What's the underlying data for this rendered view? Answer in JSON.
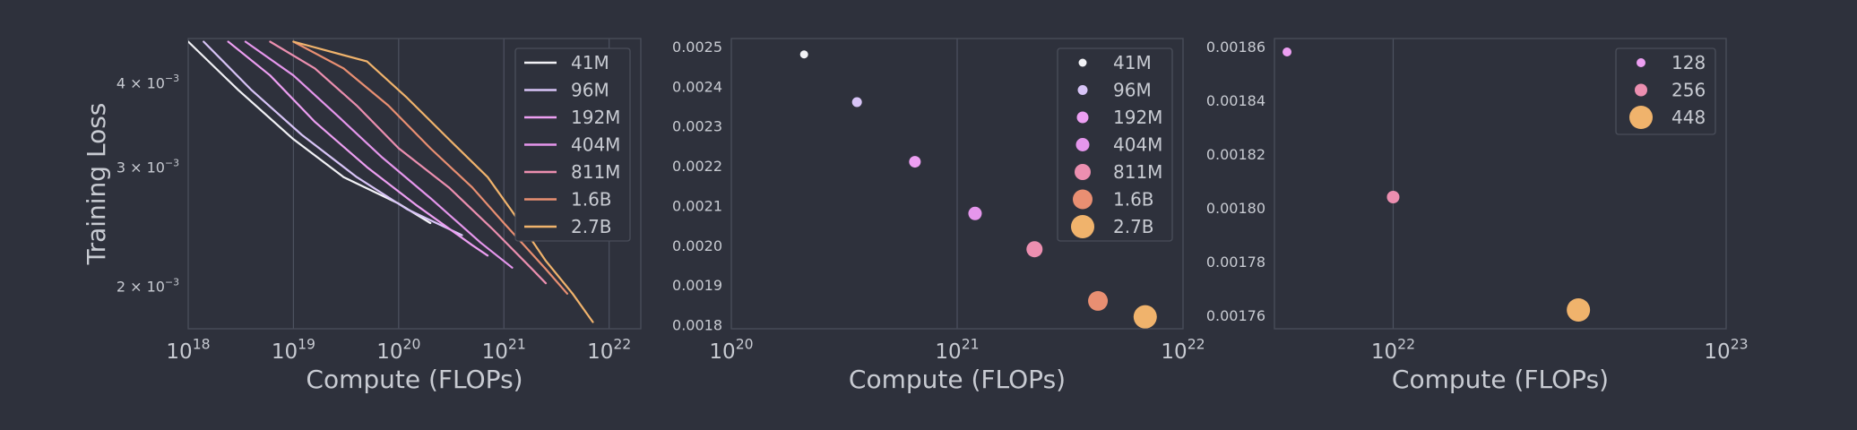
{
  "colors": {
    "background": "#2e313c",
    "text": "#c8cbd2",
    "frame": "#4a4e5a",
    "grid": "#4d5260",
    "legend_bg": "#2e313c",
    "series": [
      "#f2f2f6",
      "#d8c4f7",
      "#ed9ff2",
      "#e596ec",
      "#ec8fb0",
      "#e98f72",
      "#f0b36c"
    ]
  },
  "chart_data": [
    {
      "type": "line",
      "ylabel": "Training Loss",
      "xlabel": "Compute (FLOPs)",
      "xscale": "log",
      "yscale": "log",
      "xlim": [
        1e+18,
        2e+22
      ],
      "ylim": [
        0.00173,
        0.00465
      ],
      "grid": "vertical",
      "legend_position": "top-right",
      "x_ticks": [
        {
          "v": 1e+18,
          "base": "10",
          "exp": "18"
        },
        {
          "v": 1e+19,
          "base": "10",
          "exp": "19"
        },
        {
          "v": 1e+20,
          "base": "10",
          "exp": "20"
        },
        {
          "v": 1e+21,
          "base": "10",
          "exp": "21"
        },
        {
          "v": 1e+22,
          "base": "10",
          "exp": "22"
        }
      ],
      "y_ticks": [
        {
          "v": 0.004,
          "base": "4 × 10",
          "exp": "−3"
        },
        {
          "v": 0.003,
          "base": "3 × 10",
          "exp": "−3"
        },
        {
          "v": 0.002,
          "base": "2 × 10",
          "exp": "−3"
        }
      ],
      "series": [
        {
          "name": "41M",
          "points": [
            [
              1e+18,
              0.0046
            ],
            [
              3e+18,
              0.0039
            ],
            [
              1e+19,
              0.0033
            ],
            [
              3e+19,
              0.0029
            ],
            [
              1e+20,
              0.00265
            ],
            [
              2e+20,
              0.00248
            ]
          ]
        },
        {
          "name": "96M",
          "points": [
            [
              1.4e+18,
              0.0046
            ],
            [
              4e+18,
              0.0039
            ],
            [
              1.2e+19,
              0.00335
            ],
            [
              4e+19,
              0.0029
            ],
            [
              1.2e+20,
              0.0026
            ],
            [
              4e+20,
              0.00238
            ]
          ]
        },
        {
          "name": "192M",
          "points": [
            [
              2.4e+18,
              0.0046
            ],
            [
              6e+18,
              0.0041
            ],
            [
              1.6e+19,
              0.0035
            ],
            [
              5e+19,
              0.003
            ],
            [
              1.5e+20,
              0.00263
            ],
            [
              5e+20,
              0.0023
            ],
            [
              7e+20,
              0.00222
            ]
          ]
        },
        {
          "name": "404M",
          "points": [
            [
              3.5e+18,
              0.0046
            ],
            [
              1e+19,
              0.0041
            ],
            [
              2.5e+19,
              0.0036
            ],
            [
              7e+19,
              0.0031
            ],
            [
              2e+20,
              0.0027
            ],
            [
              6e+20,
              0.00232
            ],
            [
              1.2e+21,
              0.00213
            ]
          ]
        },
        {
          "name": "811M",
          "points": [
            [
              6e+18,
              0.0046
            ],
            [
              1.6e+19,
              0.0042
            ],
            [
              4e+19,
              0.0037
            ],
            [
              1e+20,
              0.0032
            ],
            [
              3e+20,
              0.0028
            ],
            [
              8e+20,
              0.00242
            ],
            [
              1.8e+21,
              0.00213
            ],
            [
              2.5e+21,
              0.00202
            ]
          ]
        },
        {
          "name": "1.6B",
          "points": [
            [
              1e+19,
              0.0046
            ],
            [
              3e+19,
              0.0042
            ],
            [
              8e+19,
              0.0037
            ],
            [
              2e+20,
              0.0032
            ],
            [
              5e+20,
              0.0028
            ],
            [
              1e+21,
              0.00248
            ],
            [
              2.5e+21,
              0.00212
            ],
            [
              4e+21,
              0.00195
            ]
          ]
        },
        {
          "name": "2.7B",
          "points": [
            [
              1e+19,
              0.0046
            ],
            [
              5e+19,
              0.0043
            ],
            [
              1.2e+20,
              0.0038
            ],
            [
              3e+20,
              0.0033
            ],
            [
              7e+20,
              0.0029
            ],
            [
              1.2e+21,
              0.00258
            ],
            [
              2.5e+21,
              0.00218
            ],
            [
              4.5e+21,
              0.00195
            ],
            [
              7e+21,
              0.00177
            ]
          ]
        }
      ]
    },
    {
      "type": "scatter",
      "xlabel": "Compute (FLOPs)",
      "xscale": "log",
      "xlim": [
        1e+20,
        1e+22
      ],
      "ylim": [
        0.00179,
        0.00252
      ],
      "grid": "vertical",
      "legend_position": "top-right",
      "x_ticks": [
        {
          "v": 1e+20,
          "base": "10",
          "exp": "20"
        },
        {
          "v": 1e+21,
          "base": "10",
          "exp": "21"
        },
        {
          "v": 1e+22,
          "base": "10",
          "exp": "22"
        }
      ],
      "y_ticks": [
        {
          "v": 0.0025,
          "label": "0.0025"
        },
        {
          "v": 0.0024,
          "label": "0.0024"
        },
        {
          "v": 0.0023,
          "label": "0.0023"
        },
        {
          "v": 0.0022,
          "label": "0.0022"
        },
        {
          "v": 0.0021,
          "label": "0.0021"
        },
        {
          "v": 0.002,
          "label": "0.0020"
        },
        {
          "v": 0.0019,
          "label": "0.0019"
        },
        {
          "v": 0.0018,
          "label": "0.0018"
        }
      ],
      "series": [
        {
          "name": "41M",
          "x": 2.1e+20,
          "y": 0.00248,
          "r": 4.5
        },
        {
          "name": "96M",
          "x": 3.6e+20,
          "y": 0.00236,
          "r": 5.5
        },
        {
          "name": "192M",
          "x": 6.5e+20,
          "y": 0.00221,
          "r": 6.5
        },
        {
          "name": "404M",
          "x": 1.2e+21,
          "y": 0.00208,
          "r": 7.5
        },
        {
          "name": "811M",
          "x": 2.2e+21,
          "y": 0.00199,
          "r": 9
        },
        {
          "name": "1.6B",
          "x": 4.2e+21,
          "y": 0.00186,
          "r": 11
        },
        {
          "name": "2.7B",
          "x": 6.8e+21,
          "y": 0.00182,
          "r": 13
        }
      ]
    },
    {
      "type": "scatter",
      "xlabel": "Compute (FLOPs)",
      "xscale": "log",
      "xlim": [
        4.4e+21,
        1e+23
      ],
      "ylim": [
        0.001755,
        0.001863
      ],
      "grid": "vertical",
      "legend_position": "top-right",
      "x_ticks": [
        {
          "v": 1e+22,
          "base": "10",
          "exp": "22"
        },
        {
          "v": 1e+23,
          "base": "10",
          "exp": "23"
        }
      ],
      "y_ticks": [
        {
          "v": 0.00186,
          "label": "0.00186"
        },
        {
          "v": 0.00184,
          "label": "0.00184"
        },
        {
          "v": 0.00182,
          "label": "0.00182"
        },
        {
          "v": 0.0018,
          "label": "0.00180"
        },
        {
          "v": 0.00178,
          "label": "0.00178"
        },
        {
          "v": 0.00176,
          "label": "0.00176"
        }
      ],
      "series": [
        {
          "name": "128",
          "x": 4.8e+21,
          "y": 0.001858,
          "color": "#ed9ff2",
          "r": 5
        },
        {
          "name": "256",
          "x": 1e+22,
          "y": 0.001804,
          "color": "#ec8fb0",
          "r": 7
        },
        {
          "name": "448",
          "x": 3.6e+22,
          "y": 0.001762,
          "color": "#f0b36c",
          "r": 13
        }
      ]
    }
  ]
}
